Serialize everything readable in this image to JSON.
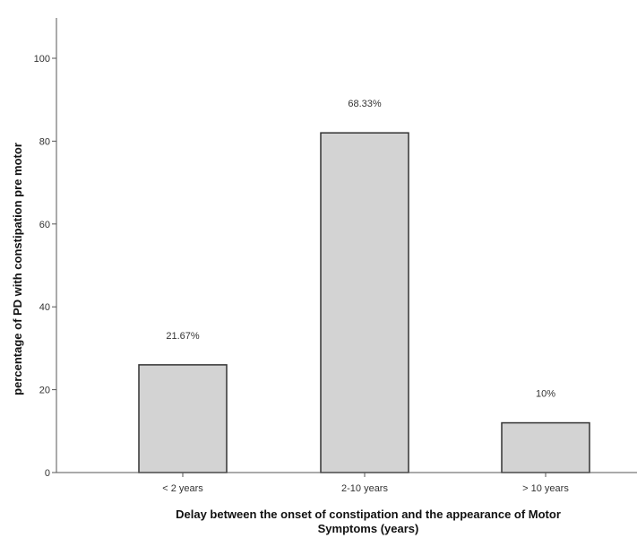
{
  "chart_data": {
    "type": "bar",
    "categories": [
      "< 2 years",
      "2-10 years",
      "> 10 years"
    ],
    "values": [
      26,
      82,
      12
    ],
    "data_labels": [
      "21.67%",
      "68.33%",
      "10%"
    ],
    "title": "",
    "xlabel_lines": [
      "Delay between the onset of constipation and the appearance of Motor",
      "Symptoms (years)"
    ],
    "ylabel": "percentage of PD with constipation pre motor",
    "ylim": [
      0,
      110
    ],
    "yticks": [
      0,
      20,
      40,
      60,
      80,
      100
    ],
    "grid": false,
    "legend": "none",
    "colors": {
      "bar_fill": "#d3d3d3",
      "bar_stroke": "#333333",
      "axis": "#555555"
    }
  }
}
